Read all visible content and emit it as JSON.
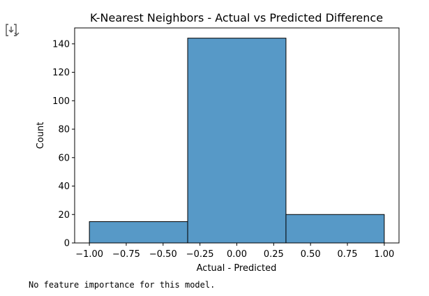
{
  "cell": {
    "output_icon": "output-toggle-icon",
    "console_text": "No feature importance for this model."
  },
  "chart_data": {
    "type": "bar",
    "title": "K-Nearest Neighbors - Actual vs Predicted Difference",
    "xlabel": "Actual - Predicted",
    "ylabel": "Count",
    "bins": [
      {
        "x0": -1.0,
        "x1": -0.3333,
        "count": 15
      },
      {
        "x0": -0.3333,
        "x1": 0.3333,
        "count": 144
      },
      {
        "x0": 0.3333,
        "x1": 1.0,
        "count": 20
      }
    ],
    "xlim": [
      -1.1,
      1.1
    ],
    "ylim": [
      0,
      151.2
    ],
    "xticks": [
      {
        "value": -1.0,
        "label": "−1.00"
      },
      {
        "value": -0.75,
        "label": "−0.75"
      },
      {
        "value": -0.5,
        "label": "−0.50"
      },
      {
        "value": -0.25,
        "label": "−0.25"
      },
      {
        "value": 0.0,
        "label": "0.00"
      },
      {
        "value": 0.25,
        "label": "0.25"
      },
      {
        "value": 0.5,
        "label": "0.50"
      },
      {
        "value": 0.75,
        "label": "0.75"
      },
      {
        "value": 1.0,
        "label": "1.00"
      }
    ],
    "yticks": [
      {
        "value": 0,
        "label": "0"
      },
      {
        "value": 20,
        "label": "20"
      },
      {
        "value": 40,
        "label": "40"
      },
      {
        "value": 60,
        "label": "60"
      },
      {
        "value": 80,
        "label": "80"
      },
      {
        "value": 100,
        "label": "100"
      },
      {
        "value": 120,
        "label": "120"
      },
      {
        "value": 140,
        "label": "140"
      }
    ],
    "bar_color": "#5799c7",
    "edge_color": "#000000",
    "grid": false
  }
}
